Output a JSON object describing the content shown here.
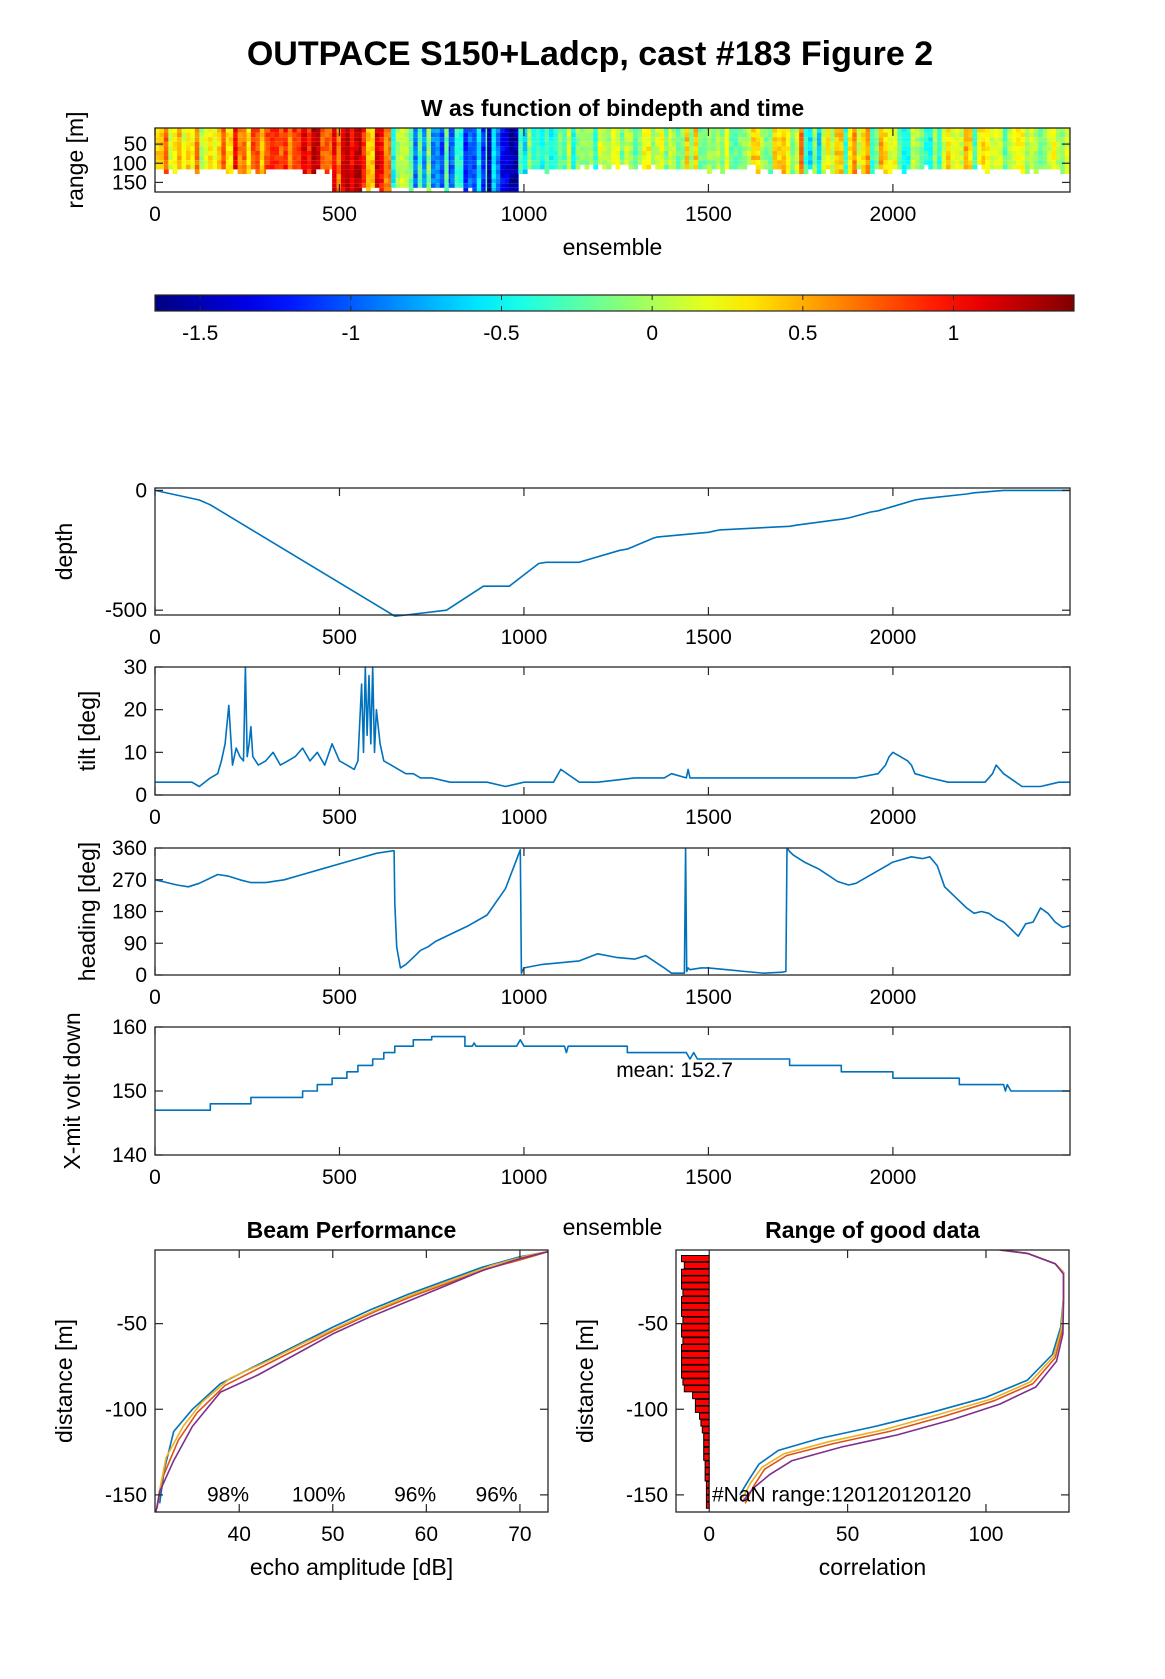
{
  "figure": {
    "title": "OUTPACE S150+Ladcp, cast #183 Figure 2"
  },
  "chart_data": [
    {
      "id": "w",
      "type": "heatmap",
      "title": "W as function of bindepth and time",
      "xlabel": "ensemble",
      "ylabel": "range [m]",
      "xlim": [
        0,
        2480
      ],
      "ylim": [
        175,
        8
      ],
      "xticks": [
        0,
        500,
        1000,
        1500,
        2000
      ],
      "yticks": [
        50,
        100,
        150
      ],
      "colorbar": {
        "colormap": "jet",
        "clim": [
          -1.65,
          1.4
        ],
        "ticks": [
          -1.5,
          -1,
          -0.5,
          0,
          0.5,
          1
        ]
      },
      "segments": [
        {
          "x0": 0,
          "x1": 200,
          "depth": 112,
          "wmin": -0.05,
          "wmax": 0.75
        },
        {
          "x0": 200,
          "x1": 300,
          "depth": 118,
          "wmin": 0.3,
          "wmax": 1.1
        },
        {
          "x0": 300,
          "x1": 400,
          "depth": 110,
          "wmin": 0.5,
          "wmax": 1.25
        },
        {
          "x0": 400,
          "x1": 480,
          "depth": 118,
          "wmin": 0.7,
          "wmax": 1.35
        },
        {
          "x0": 480,
          "x1": 560,
          "depth": 172,
          "wmin": 0.45,
          "wmax": 1.3
        },
        {
          "x0": 560,
          "x1": 640,
          "depth": 165,
          "wmin": 0.3,
          "wmax": 1.2
        },
        {
          "x0": 640,
          "x1": 700,
          "depth": 160,
          "wmin": -0.8,
          "wmax": 0.9
        },
        {
          "x0": 700,
          "x1": 800,
          "depth": 160,
          "wmin": -1.1,
          "wmax": 0.1
        },
        {
          "x0": 800,
          "x1": 900,
          "depth": 168,
          "wmin": -1.3,
          "wmax": -0.2
        },
        {
          "x0": 900,
          "x1": 985,
          "depth": 172,
          "wmin": -1.6,
          "wmax": -0.6
        },
        {
          "x0": 985,
          "x1": 1020,
          "depth": 122,
          "wmin": -1.0,
          "wmax": 0.0
        },
        {
          "x0": 1020,
          "x1": 1200,
          "depth": 110,
          "wmin": -0.6,
          "wmax": 0.15
        },
        {
          "x0": 1200,
          "x1": 1400,
          "depth": 106,
          "wmin": -0.3,
          "wmax": 0.35
        },
        {
          "x0": 1400,
          "x1": 1650,
          "depth": 110,
          "wmin": -0.25,
          "wmax": 0.5
        },
        {
          "x0": 1650,
          "x1": 2000,
          "depth": 118,
          "wmin": -0.65,
          "wmax": 0.7
        },
        {
          "x0": 2000,
          "x1": 2250,
          "depth": 110,
          "wmin": -0.6,
          "wmax": 0.55
        },
        {
          "x0": 2250,
          "x1": 2480,
          "depth": 112,
          "wmin": -0.35,
          "wmax": 0.35
        }
      ]
    },
    {
      "id": "depth",
      "type": "line",
      "xlabel": "",
      "ylabel": "depth",
      "xlim": [
        0,
        2480
      ],
      "ylim": [
        -520,
        10
      ],
      "xticks": [
        0,
        500,
        1000,
        1500,
        2000
      ],
      "yticks": [
        -500,
        0
      ],
      "x": [
        0,
        120,
        150,
        650,
        680,
        790,
        890,
        960,
        1040,
        1060,
        1150,
        1160,
        1260,
        1280,
        1350,
        1360,
        1500,
        1530,
        1720,
        1740,
        1860,
        1880,
        1940,
        1960,
        2060,
        2080,
        2200,
        2220,
        2300,
        2480
      ],
      "y": [
        0,
        -40,
        -60,
        -525,
        -520,
        -500,
        -400,
        -400,
        -305,
        -300,
        -300,
        -295,
        -250,
        -245,
        -200,
        -195,
        -175,
        -165,
        -150,
        -145,
        -120,
        -115,
        -90,
        -85,
        -40,
        -35,
        -15,
        -10,
        0,
        0
      ]
    },
    {
      "id": "tilt",
      "type": "line",
      "xlabel": "",
      "ylabel": "tilt [deg]",
      "xlim": [
        0,
        2480
      ],
      "ylim": [
        0,
        30
      ],
      "xticks": [
        0,
        500,
        1000,
        1500,
        2000
      ],
      "yticks": [
        0,
        10,
        20,
        30
      ],
      "x": [
        0,
        100,
        120,
        150,
        170,
        180,
        190,
        200,
        210,
        220,
        230,
        240,
        245,
        250,
        255,
        260,
        265,
        280,
        300,
        320,
        340,
        360,
        380,
        400,
        420,
        440,
        460,
        480,
        500,
        520,
        540,
        550,
        560,
        565,
        570,
        575,
        580,
        585,
        590,
        595,
        600,
        610,
        620,
        640,
        660,
        680,
        700,
        720,
        750,
        800,
        850,
        900,
        950,
        1000,
        1080,
        1100,
        1150,
        1200,
        1300,
        1380,
        1400,
        1440,
        1445,
        1450,
        1500,
        1600,
        1700,
        1800,
        1900,
        1960,
        1980,
        1990,
        2000,
        2020,
        2040,
        2050,
        2060,
        2100,
        2150,
        2200,
        2250,
        2270,
        2280,
        2300,
        2350,
        2400,
        2450,
        2480
      ],
      "y": [
        3,
        3,
        2,
        4,
        5,
        8,
        12,
        21,
        7,
        11,
        9,
        8,
        30,
        9,
        12,
        16,
        9,
        7,
        8,
        10,
        7,
        8,
        9,
        11,
        8,
        10,
        7,
        12,
        8,
        7,
        6,
        8,
        26,
        10,
        30,
        14,
        28,
        12,
        30,
        10,
        20,
        12,
        8,
        7,
        6,
        5,
        5,
        4,
        4,
        3,
        3,
        3,
        2,
        3,
        3,
        6,
        3,
        3,
        4,
        4,
        5,
        4,
        6,
        4,
        4,
        4,
        4,
        4,
        4,
        5,
        7,
        9,
        10,
        9,
        8,
        7,
        5,
        4,
        3,
        3,
        3,
        5,
        7,
        5,
        2,
        2,
        3,
        3
      ]
    },
    {
      "id": "heading",
      "type": "line",
      "xlabel": "",
      "ylabel": "heading [deg]",
      "xlim": [
        0,
        2480
      ],
      "ylim": [
        0,
        360
      ],
      "xticks": [
        0,
        500,
        1000,
        1500,
        2000
      ],
      "yticks": [
        0,
        90,
        180,
        270,
        360
      ],
      "x": [
        0,
        20,
        60,
        90,
        120,
        170,
        200,
        230,
        260,
        300,
        350,
        400,
        450,
        500,
        550,
        600,
        645,
        648,
        650,
        655,
        665,
        680,
        700,
        720,
        740,
        760,
        800,
        850,
        900,
        950,
        990,
        993,
        1000,
        1050,
        1100,
        1150,
        1200,
        1250,
        1300,
        1330,
        1380,
        1400,
        1435,
        1438,
        1441,
        1445,
        1450,
        1480,
        1500,
        1550,
        1600,
        1650,
        1700,
        1710,
        1713,
        1720,
        1730,
        1760,
        1800,
        1850,
        1880,
        1900,
        1950,
        2000,
        2050,
        2080,
        2100,
        2120,
        2140,
        2180,
        2200,
        2220,
        2240,
        2260,
        2280,
        2300,
        2320,
        2340,
        2360,
        2380,
        2400,
        2420,
        2440,
        2460,
        2480
      ],
      "y": [
        270,
        265,
        255,
        250,
        260,
        285,
        280,
        270,
        262,
        262,
        270,
        285,
        300,
        315,
        330,
        345,
        352,
        352,
        205,
        80,
        20,
        30,
        50,
        70,
        80,
        95,
        115,
        140,
        170,
        245,
        355,
        5,
        20,
        30,
        35,
        40,
        60,
        50,
        45,
        55,
        20,
        5,
        5,
        360,
        10,
        20,
        15,
        20,
        20,
        15,
        10,
        5,
        8,
        10,
        360,
        350,
        340,
        320,
        300,
        265,
        255,
        260,
        290,
        320,
        335,
        330,
        335,
        310,
        250,
        210,
        190,
        175,
        180,
        175,
        160,
        150,
        130,
        110,
        145,
        150,
        190,
        175,
        150,
        135,
        140
      ]
    },
    {
      "id": "xmit",
      "type": "line",
      "xlabel": "ensemble",
      "ylabel": "X-mit volt down",
      "xlim": [
        0,
        2480
      ],
      "ylim": [
        140,
        160
      ],
      "xticks": [
        0,
        500,
        1000,
        1500,
        2000
      ],
      "yticks": [
        140,
        150,
        160
      ],
      "annotation": "mean: 152.7",
      "x": [
        0,
        150,
        150,
        260,
        260,
        400,
        400,
        440,
        440,
        480,
        480,
        520,
        520,
        550,
        550,
        590,
        590,
        620,
        620,
        650,
        650,
        700,
        700,
        750,
        750,
        840,
        840,
        860,
        865,
        870,
        880,
        980,
        990,
        1000,
        1100,
        1110,
        1115,
        1120,
        1280,
        1280,
        1440,
        1450,
        1460,
        1470,
        1720,
        1720,
        1860,
        1860,
        2000,
        2000,
        2180,
        2180,
        2300,
        2305,
        2310,
        2320,
        2480
      ],
      "y": [
        147,
        147,
        148,
        148,
        149,
        149,
        150,
        150,
        151,
        151,
        152,
        152,
        153,
        153,
        154,
        154,
        155,
        155,
        156,
        156,
        157,
        157,
        158,
        158,
        158.5,
        158.5,
        157,
        157,
        157.5,
        157,
        157,
        157,
        158,
        157,
        157,
        157,
        156,
        157,
        157,
        156,
        156,
        155,
        156,
        155,
        155,
        154,
        154,
        153,
        153,
        152,
        152,
        151,
        151,
        150,
        151,
        150,
        150
      ]
    },
    {
      "id": "beam",
      "type": "line",
      "title": "Beam Performance",
      "xlabel": "echo amplitude [dB]",
      "ylabel": "distance [m]",
      "xlim": [
        31,
        73
      ],
      "ylim": [
        -160,
        -7
      ],
      "xticks": [
        40,
        50,
        60,
        70
      ],
      "yticks": [
        -150,
        -100,
        -50
      ],
      "labels": [
        "98%",
        "100%",
        "96%",
        "96%"
      ],
      "series": [
        {
          "color": "#0072bd",
          "x": [
            31.5,
            32,
            33,
            35,
            38,
            42,
            46,
            50,
            54,
            58,
            62,
            66,
            70,
            73
          ],
          "y": [
            -155,
            -135,
            -113,
            -100,
            -85,
            -74,
            -63,
            -52,
            -42,
            -33,
            -25,
            -17,
            -11,
            -8
          ]
        },
        {
          "color": "#d95319",
          "x": [
            31.2,
            31.8,
            33.5,
            35.5,
            38.5,
            42.5,
            46.5,
            50.5,
            54.5,
            58.5,
            62.5,
            66.5,
            70.5,
            73
          ],
          "y": [
            -158,
            -140,
            -118,
            -102,
            -86,
            -75,
            -64,
            -53,
            -43,
            -34,
            -26,
            -18,
            -12,
            -8
          ]
        },
        {
          "color": "#edb120",
          "x": [
            31.4,
            32.2,
            34,
            36,
            39,
            43,
            47,
            51,
            55,
            59,
            63,
            67,
            71,
            73
          ],
          "y": [
            -150,
            -128,
            -110,
            -96,
            -82,
            -72,
            -61,
            -51,
            -41,
            -32,
            -24,
            -16,
            -10,
            -8
          ]
        },
        {
          "color": "#7e2f8e",
          "x": [
            31.1,
            31.5,
            33,
            35,
            38,
            42,
            46,
            50,
            54,
            58,
            62,
            66,
            70,
            73
          ],
          "y": [
            -160,
            -148,
            -130,
            -110,
            -90,
            -80,
            -68,
            -56,
            -46,
            -37,
            -28,
            -19,
            -12,
            -8
          ]
        }
      ]
    },
    {
      "id": "range",
      "type": "line",
      "title": "Range of good data",
      "xlabel": "correlation",
      "ylabel": "distance [m]",
      "xlim": [
        -12,
        130
      ],
      "ylim": [
        -160,
        -7
      ],
      "xticks": [
        0,
        50,
        100
      ],
      "yticks": [
        -150,
        -100,
        -50
      ],
      "annotation": "#NaN range:120120120120",
      "bars": {
        "color": "#ff0000",
        "y": [
          -12,
          -16,
          -20,
          -24,
          -28,
          -32,
          -36,
          -40,
          -44,
          -48,
          -52,
          -56,
          -60,
          -64,
          -68,
          -72,
          -76,
          -80,
          -84,
          -88,
          -92,
          -96,
          -100,
          -104,
          -108,
          -112,
          -116,
          -120,
          -124,
          -128,
          -132,
          -136,
          -140,
          -144,
          -148,
          -152,
          -156
        ],
        "len": [
          1,
          0.9,
          1,
          1,
          1,
          0.95,
          1,
          1,
          1,
          0.95,
          1,
          1,
          0.95,
          1,
          1,
          1,
          1,
          1,
          0.95,
          0.9,
          0.6,
          0.5,
          0.5,
          0.35,
          0.3,
          0.25,
          0.2,
          0.2,
          0.2,
          0.2,
          0.15,
          0.15,
          0.15,
          0.1,
          0.1,
          0.1,
          0.1
        ]
      },
      "series": [
        {
          "color": "#0072bd",
          "x": [
            11,
            14,
            18,
            25,
            40,
            60,
            80,
            100,
            115,
            124,
            127,
            128,
            128,
            125,
            115,
            105
          ],
          "y": [
            -150,
            -142,
            -132,
            -124,
            -117,
            -110,
            -102,
            -93,
            -83,
            -68,
            -52,
            -35,
            -20,
            -15,
            -9,
            -7
          ]
        },
        {
          "color": "#d95319",
          "x": [
            13,
            16,
            20,
            28,
            45,
            65,
            85,
            103,
            117,
            125,
            127.5,
            128,
            128,
            125,
            115,
            105
          ],
          "y": [
            -155,
            -145,
            -135,
            -127,
            -120,
            -113,
            -104,
            -95,
            -85,
            -70,
            -54,
            -36,
            -20,
            -15,
            -9,
            -7
          ]
        },
        {
          "color": "#edb120",
          "x": [
            12,
            15,
            19,
            27,
            43,
            63,
            83,
            102,
            116,
            124.5,
            127.2,
            128,
            128,
            125,
            115,
            105
          ],
          "y": [
            -152,
            -143,
            -134,
            -126,
            -119,
            -112,
            -103,
            -94,
            -84,
            -69,
            -53,
            -35,
            -20,
            -15,
            -9,
            -7
          ]
        },
        {
          "color": "#7e2f8e",
          "x": [
            12,
            16,
            22,
            30,
            48,
            68,
            88,
            105,
            118,
            125.5,
            127.8,
            128,
            128,
            125,
            115,
            105
          ],
          "y": [
            -154,
            -146,
            -138,
            -130,
            -122,
            -115,
            -106,
            -97,
            -87,
            -72,
            -56,
            -38,
            -21,
            -15,
            -9,
            -7
          ]
        }
      ]
    }
  ]
}
